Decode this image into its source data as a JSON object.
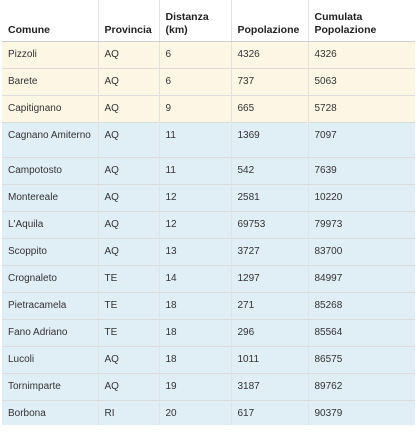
{
  "table": {
    "headers": [
      "Comune",
      "Provincia",
      "Distanza\n(km)",
      "Popolazione",
      "Cumulata\nPopolazione"
    ],
    "rows": [
      {
        "comune": "Pizzoli",
        "provincia": "AQ",
        "distanza": "6",
        "popolazione": "4326",
        "cumulata": "4326",
        "highlight": true
      },
      {
        "comune": "Barete",
        "provincia": "AQ",
        "distanza": "6",
        "popolazione": "737",
        "cumulata": "5063",
        "highlight": true
      },
      {
        "comune": "Capitignano",
        "provincia": "AQ",
        "distanza": "9",
        "popolazione": "665",
        "cumulata": "5728",
        "highlight": true
      },
      {
        "comune": "Cagnano Amiterno",
        "provincia": "AQ",
        "distanza": "11",
        "popolazione": "1369",
        "cumulata": "7097",
        "highlight": false
      },
      {
        "comune": "Campotosto",
        "provincia": "AQ",
        "distanza": "11",
        "popolazione": "542",
        "cumulata": "7639",
        "highlight": false
      },
      {
        "comune": "Montereale",
        "provincia": "AQ",
        "distanza": "12",
        "popolazione": "2581",
        "cumulata": "10220",
        "highlight": false
      },
      {
        "comune": "L'Aquila",
        "provincia": "AQ",
        "distanza": "12",
        "popolazione": "69753",
        "cumulata": "79973",
        "highlight": false
      },
      {
        "comune": "Scoppito",
        "provincia": "AQ",
        "distanza": "13",
        "popolazione": "3727",
        "cumulata": "83700",
        "highlight": false
      },
      {
        "comune": "Crognaleto",
        "provincia": "TE",
        "distanza": "14",
        "popolazione": "1297",
        "cumulata": "84997",
        "highlight": false
      },
      {
        "comune": "Pietracamela",
        "provincia": "TE",
        "distanza": "18",
        "popolazione": "271",
        "cumulata": "85268",
        "highlight": false
      },
      {
        "comune": "Fano Adriano",
        "provincia": "TE",
        "distanza": "18",
        "popolazione": "296",
        "cumulata": "85564",
        "highlight": false
      },
      {
        "comune": "Lucoli",
        "provincia": "AQ",
        "distanza": "18",
        "popolazione": "1011",
        "cumulata": "86575",
        "highlight": false
      },
      {
        "comune": "Tornimparte",
        "provincia": "AQ",
        "distanza": "19",
        "popolazione": "3187",
        "cumulata": "89762",
        "highlight": false
      },
      {
        "comune": "Borbona",
        "provincia": "RI",
        "distanza": "20",
        "popolazione": "617",
        "cumulata": "90379",
        "highlight": false
      }
    ]
  },
  "colors": {
    "highlight_row": "#fcf7e4",
    "base_row": "#e0eef6",
    "header_bg": "#ffffff"
  }
}
